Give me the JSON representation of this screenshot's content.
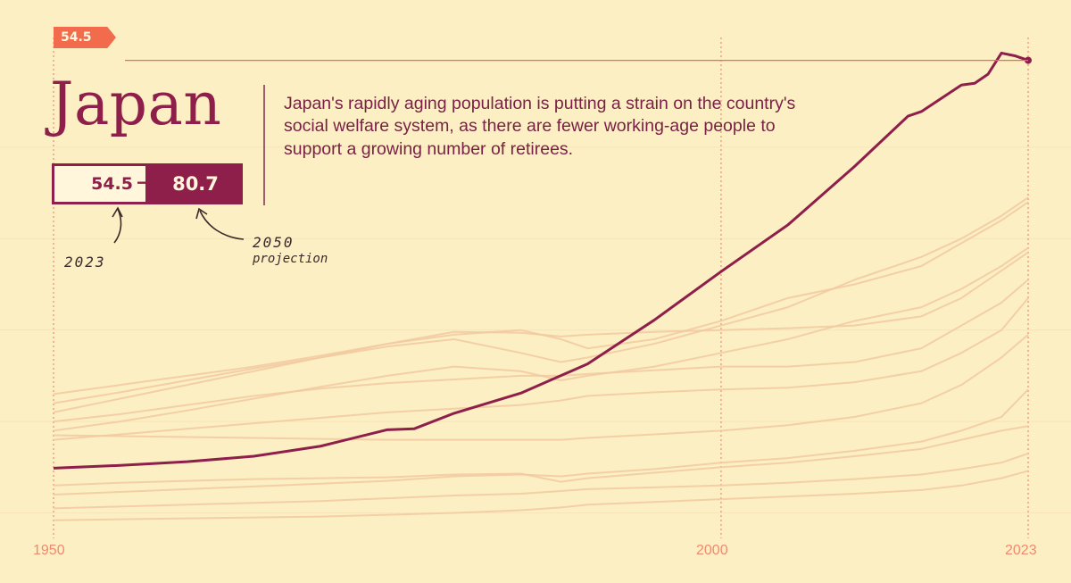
{
  "country": "Japan",
  "description": "Japan's rapidly aging population is putting a strain on the country's social welfare system, as there are fewer working-age people to support a growing number of retirees.",
  "current_value": "54.5",
  "projected_value": "80.7",
  "arrow": "→",
  "label_current_year": "2023",
  "label_projection_year": "2050",
  "label_projection": "projection",
  "reference_pill": "54.5",
  "colors": {
    "background": "#fcefc4",
    "highlight": "#8e1f4a",
    "others": "#f2c9a0",
    "accent": "#f26b4c",
    "grid": "#f08a6e"
  },
  "chart_data": {
    "type": "line",
    "x_ticks": [
      "1950",
      "2000",
      "2023"
    ],
    "xlim": [
      1950,
      2023
    ],
    "ylim": [
      3,
      57
    ],
    "reference_line": 54.5,
    "grid": false,
    "highlight_series": {
      "name": "Japan",
      "x": [
        1950,
        1955,
        1960,
        1965,
        1970,
        1975,
        1977,
        1980,
        1985,
        1990,
        1995,
        2000,
        2005,
        2010,
        2014,
        2015,
        2018,
        2019,
        2020,
        2021,
        2022,
        2023
      ],
      "values": [
        9.9,
        10.2,
        10.6,
        11.2,
        12.3,
        14.1,
        14.2,
        15.9,
        18.1,
        21.3,
        26.1,
        31.4,
        36.5,
        42.9,
        48.4,
        48.9,
        51.8,
        52.0,
        53.0,
        55.3,
        55.0,
        54.5
      ]
    },
    "other_series": [
      {
        "values": [
          16.0,
          17.5,
          19.0,
          20.5,
          22.0,
          23.5,
          24.5,
          25.0,
          24.0,
          23.0,
          24.0,
          26.0,
          28.5,
          30.0,
          32.0,
          34.5,
          37.0,
          39.0
        ]
      },
      {
        "values": [
          17.0,
          18.2,
          19.5,
          20.8,
          22.0,
          23.2,
          24.0,
          22.5,
          21.5,
          22.0,
          23.5,
          25.5,
          27.5,
          30.5,
          33.0,
          35.0,
          37.5,
          39.5
        ]
      },
      {
        "values": [
          18.0,
          19.0,
          20.0,
          21.0,
          22.2,
          23.5,
          24.8,
          24.7,
          24.3,
          24.5,
          24.8,
          25.0,
          25.2,
          25.5,
          26.5,
          28.5,
          31.5,
          33.5
        ]
      },
      {
        "values": [
          14.0,
          15.0,
          16.2,
          17.5,
          18.8,
          20.0,
          21.0,
          20.5,
          19.5,
          20.0,
          21.0,
          22.5,
          24.0,
          26.0,
          27.5,
          29.5,
          32.0,
          34.0
        ]
      },
      {
        "values": [
          15.0,
          15.8,
          16.8,
          17.8,
          18.6,
          19.2,
          19.6,
          20.0,
          20.0,
          20.2,
          20.6,
          21.0,
          21.0,
          21.5,
          23.0,
          25.5,
          28.0,
          30.5
        ]
      },
      {
        "values": [
          13.0,
          13.6,
          14.2,
          14.8,
          15.4,
          16.0,
          16.4,
          16.8,
          17.3,
          17.8,
          18.2,
          18.5,
          18.7,
          19.3,
          20.5,
          22.5,
          25.0,
          28.5
        ]
      },
      {
        "values": [
          13.5,
          13.4,
          13.3,
          13.2,
          13.1,
          13.0,
          13.0,
          13.0,
          13.0,
          13.2,
          13.6,
          14.0,
          14.6,
          15.5,
          17.0,
          19.0,
          22.0,
          24.5
        ]
      },
      {
        "values": [
          7.0,
          7.3,
          7.6,
          7.9,
          8.2,
          8.5,
          9.0,
          9.2,
          9.0,
          9.3,
          9.8,
          10.5,
          11.0,
          11.8,
          12.8,
          14.0,
          15.5,
          18.5
        ]
      },
      {
        "values": [
          8.0,
          8.3,
          8.5,
          8.7,
          8.8,
          8.9,
          9.2,
          9.3,
          8.4,
          8.8,
          9.4,
          10.0,
          10.5,
          11.2,
          12.0,
          13.0,
          14.0,
          14.5
        ]
      },
      {
        "values": [
          5.5,
          5.7,
          5.9,
          6.1,
          6.3,
          6.6,
          6.9,
          7.1,
          7.4,
          7.6,
          7.8,
          8.0,
          8.3,
          8.7,
          9.2,
          9.8,
          10.5,
          11.5
        ]
      },
      {
        "values": [
          4.2,
          4.3,
          4.4,
          4.5,
          4.6,
          4.8,
          5.0,
          5.3,
          5.6,
          5.9,
          6.2,
          6.5,
          6.8,
          7.1,
          7.5,
          8.0,
          8.8,
          9.6
        ]
      }
    ],
    "other_series_x": [
      1950,
      1955,
      1960,
      1965,
      1970,
      1975,
      1980,
      1985,
      1988,
      1990,
      1995,
      2000,
      2005,
      2010,
      2015,
      2018,
      2021,
      2023
    ]
  }
}
